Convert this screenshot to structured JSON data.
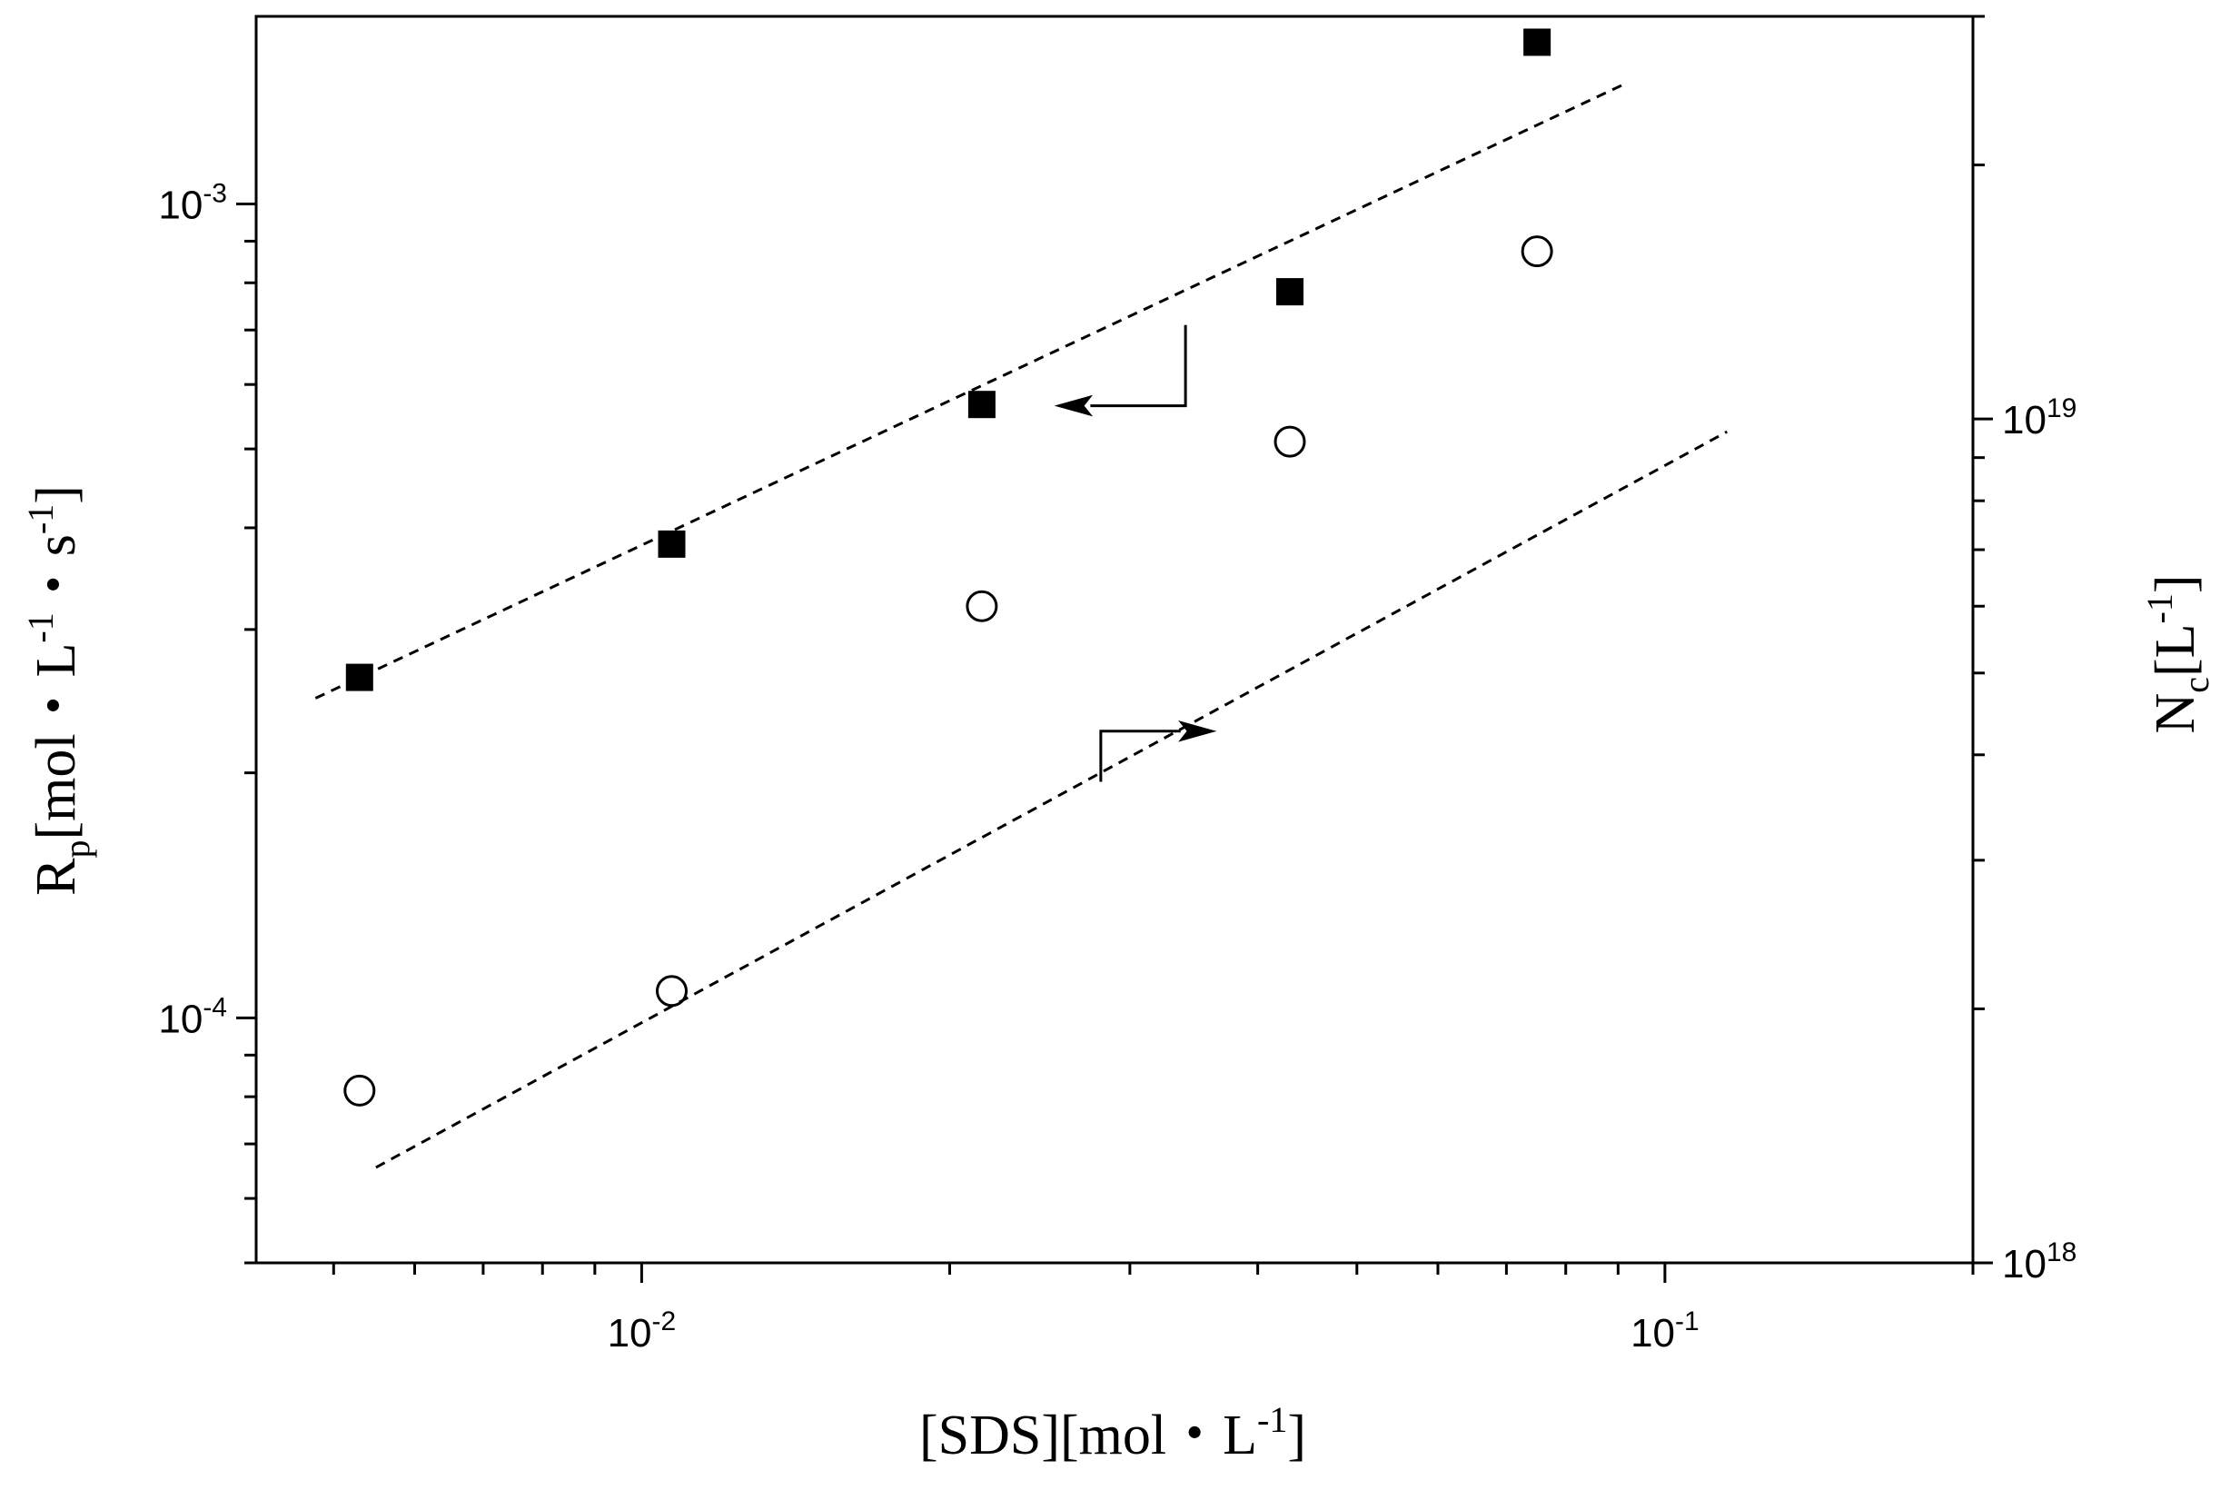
{
  "chart_data": {
    "type": "scatter",
    "title": "",
    "xlabel": {
      "main": "[SDS][mol・L",
      "sup": "-1",
      "close": "]"
    },
    "ylabel_left": {
      "main": "R",
      "sub": "p",
      "rest": "[mol・L",
      "sup1": "-1",
      "mid": "・s",
      "sup2": "-1",
      "close": "]"
    },
    "ylabel_right": {
      "main": "N",
      "sub": "c",
      "rest": "[L",
      "sup": "-1",
      "close": "]"
    },
    "x_scale": "log",
    "y_left_scale": "log",
    "y_right_scale": "log",
    "xlim": [
      0.0042,
      0.2
    ],
    "ylim_left": [
      5e-05,
      0.0017
    ],
    "ylim_right": [
      1e+18,
      3e+19
    ],
    "x_ticks": [
      {
        "base": "10",
        "exp": "-2",
        "value": 0.01
      },
      {
        "base": "10",
        "exp": "-1",
        "value": 0.1
      }
    ],
    "y_left_ticks": [
      {
        "base": "10",
        "exp": "-4",
        "value": 0.0001
      },
      {
        "base": "10",
        "exp": "-3",
        "value": 0.001
      }
    ],
    "y_right_ticks": [
      {
        "base": "10",
        "exp": "18",
        "value": 1e+18
      },
      {
        "base": "10",
        "exp": "19",
        "value": 1e+19
      }
    ],
    "grid": false,
    "series": [
      {
        "marker": "filled-square",
        "axis": "left",
        "x": [
          0.0053,
          0.0107,
          0.0215,
          0.043,
          0.075
        ],
        "y": [
          0.000262,
          0.000382,
          0.000567,
          0.00078,
          0.00158
        ]
      },
      {
        "marker": "open-circle",
        "axis": "right",
        "x": [
          0.0053,
          0.0107,
          0.0215,
          0.043,
          0.075
        ],
        "y": [
          1.6e+18,
          2.1e+18,
          6e+18,
          9.4e+18,
          1.58e+19
        ]
      }
    ],
    "fits": [
      {
        "axis": "left",
        "style": "dashed",
        "x": [
          0.0048,
          0.092
        ],
        "y": [
          0.000247,
          0.00141
        ]
      },
      {
        "axis": "left_scale",
        "style": "dashed",
        "x": [
          0.0055,
          0.115
        ],
        "y": [
          6.55e-05,
          0.000525
        ]
      }
    ],
    "arrows": [
      {
        "points_to": "left-axis",
        "from": [
          0.034,
          0.00071
        ],
        "corner": [
          0.034,
          0.000565
        ],
        "to": [
          0.0255,
          0.000565
        ]
      },
      {
        "points_to": "right-axis",
        "from": [
          0.0281,
          0.000195
        ],
        "corner": [
          0.0281,
          0.000225
        ],
        "to": [
          0.0362,
          0.000225
        ]
      }
    ]
  }
}
